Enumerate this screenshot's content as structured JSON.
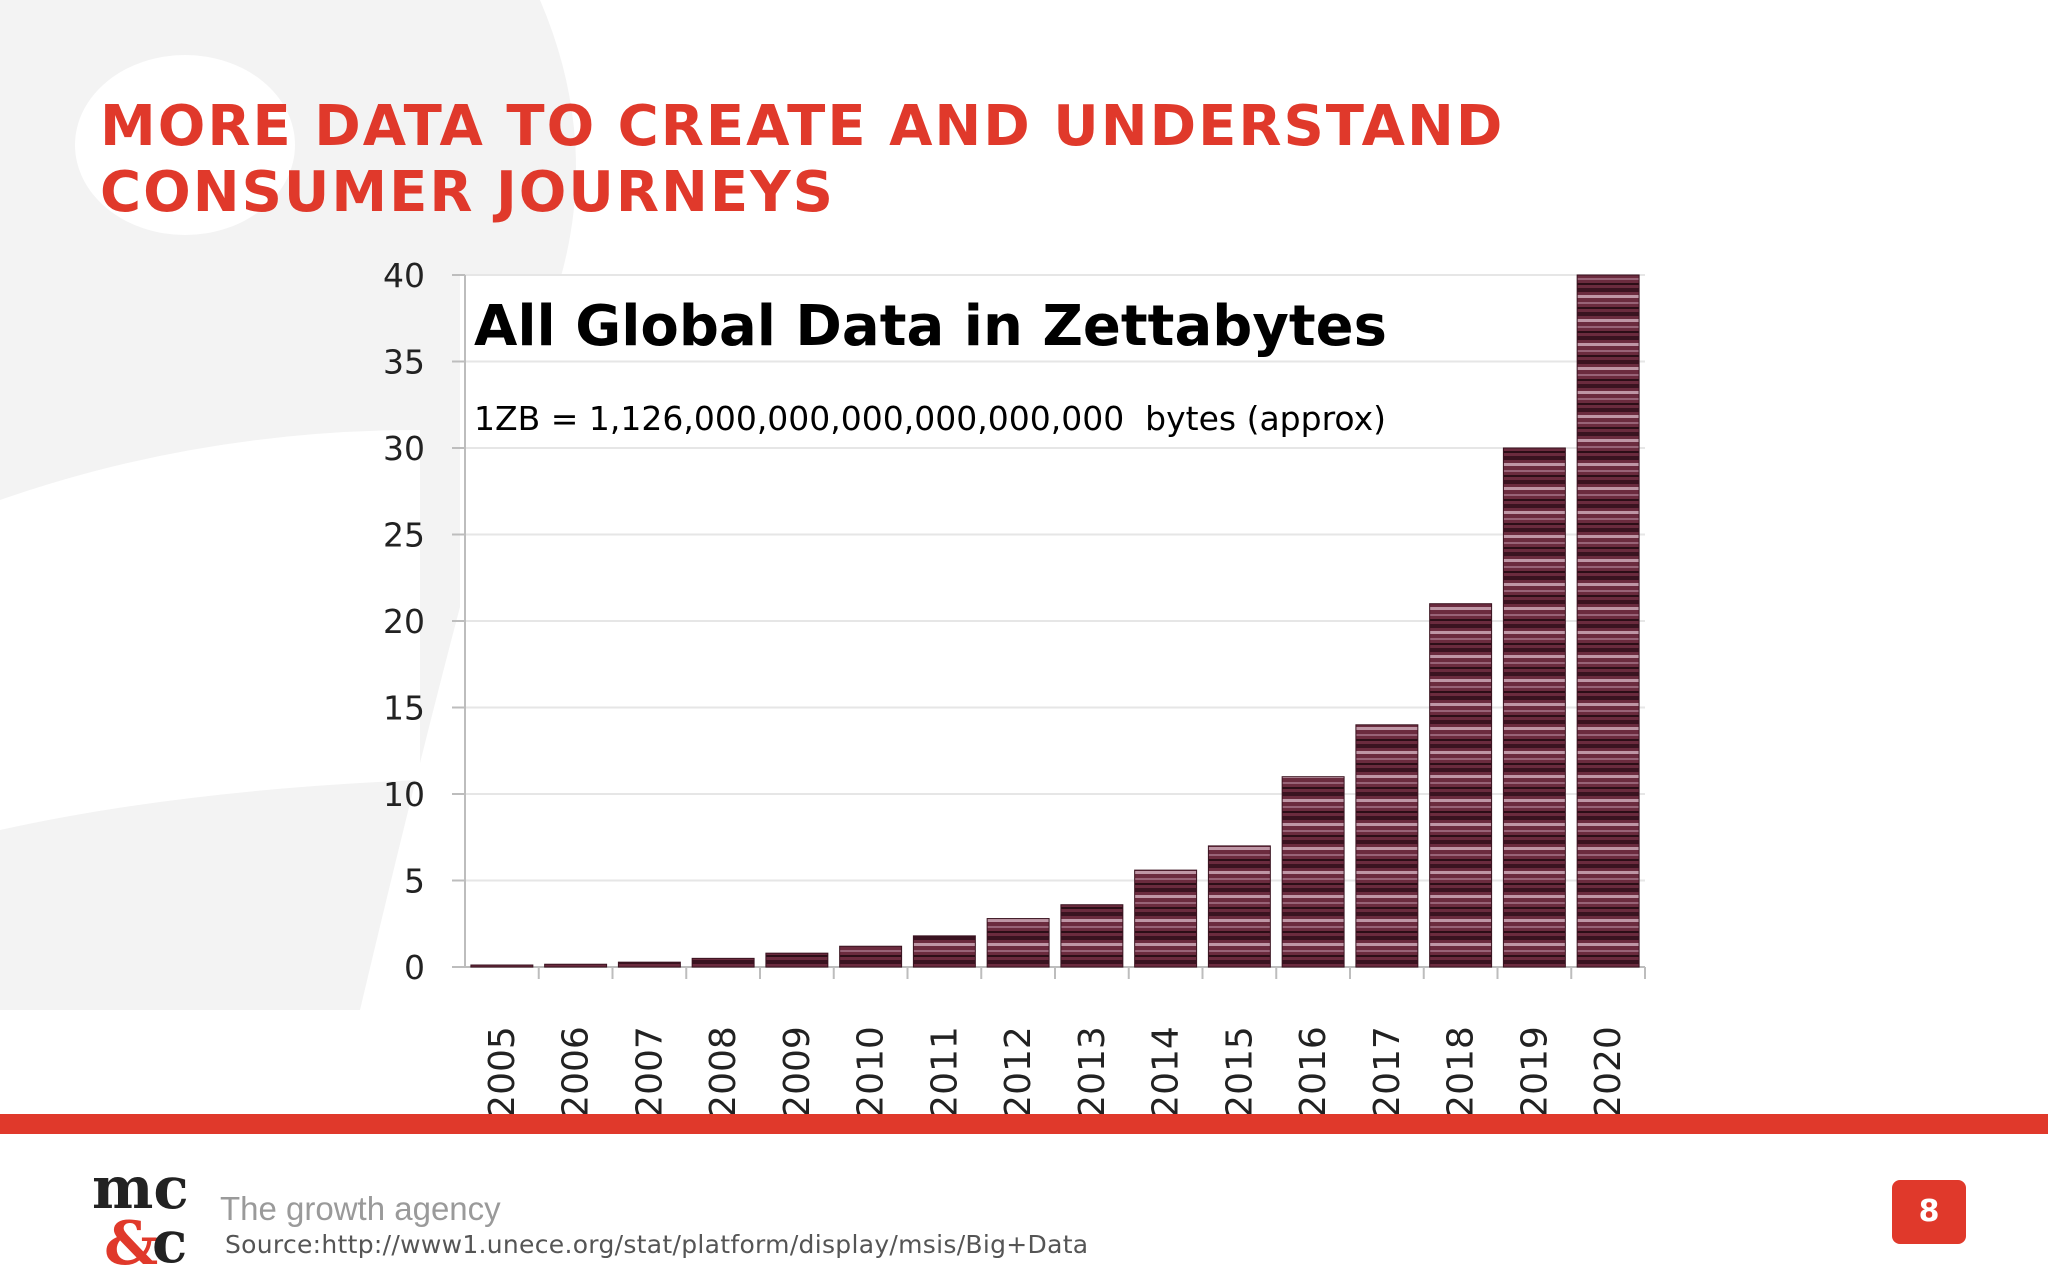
{
  "slide": {
    "title_line1": "MORE DATA TO CREATE AND UNDERSTAND",
    "title_line2": "CONSUMER JOURNEYS",
    "tagline": "The growth agency",
    "source": "Source:http://www1.unece.org/stat/platform/display/msis/Big+Data",
    "page_number": "8",
    "logo_text": "mc&c"
  },
  "colors": {
    "accent": "#e0392b",
    "bar": "#6b2b3e",
    "bar_dark": "#3a1320",
    "bar_light": "#d9b9c6",
    "grid": "#e6e6e6",
    "background_shape": "#f3f3f3"
  },
  "chart_data": {
    "type": "bar",
    "title": "All Global Data in Zettabytes",
    "subtitle": "1ZB = 1,126,000,000,000,000,000,000  bytes (approx)",
    "categories": [
      "2005",
      "2006",
      "2007",
      "2008",
      "2009",
      "2010",
      "2011",
      "2012",
      "2013",
      "2014",
      "2015",
      "2016",
      "2017",
      "2018",
      "2019",
      "2020"
    ],
    "values": [
      0.1,
      0.16,
      0.28,
      0.5,
      0.8,
      1.2,
      1.8,
      2.8,
      3.6,
      5.6,
      7.0,
      11.0,
      14.0,
      21.0,
      30.0,
      40.0
    ],
    "ylim": [
      0,
      40
    ],
    "yticks": [
      0,
      5,
      10,
      15,
      20,
      25,
      30,
      35,
      40
    ],
    "xlabel": "",
    "ylabel": "",
    "grid": true,
    "legend": "none"
  }
}
